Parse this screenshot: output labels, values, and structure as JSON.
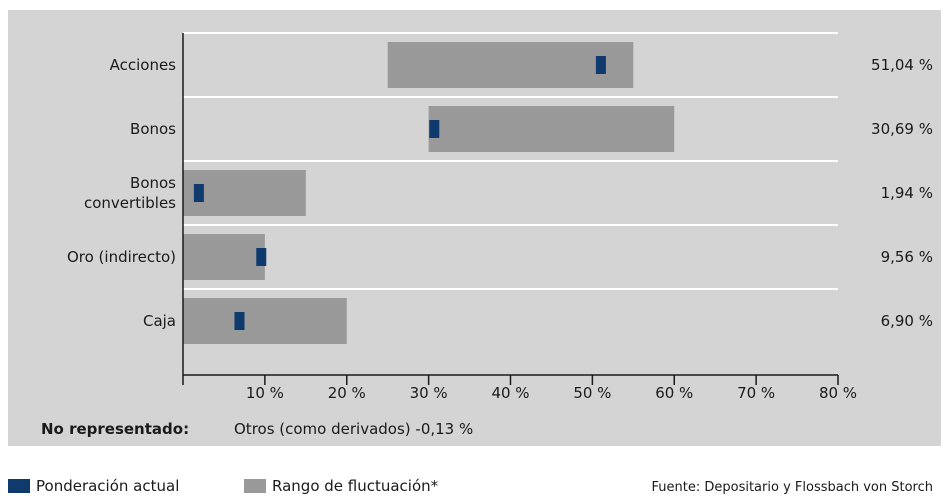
{
  "chart_data": {
    "type": "bar",
    "orientation": "horizontal",
    "categories": [
      "Acciones",
      "Bonos",
      "Bonos\nconvertibles",
      "Oro (indirecto)",
      "Caja"
    ],
    "ranges": [
      [
        25,
        55
      ],
      [
        30,
        60
      ],
      [
        0,
        15
      ],
      [
        0,
        10
      ],
      [
        0,
        20
      ]
    ],
    "values": [
      51.04,
      30.69,
      1.94,
      9.56,
      6.9
    ],
    "value_labels": [
      "51,04 %",
      "30,69 %",
      "1,94 %",
      "9,56 %",
      "6,90 %"
    ],
    "xlim": [
      0,
      80
    ],
    "x_ticks": [
      0,
      10,
      20,
      30,
      40,
      50,
      60,
      70,
      80
    ],
    "x_tick_labels": [
      "",
      "10 %",
      "20 %",
      "30 %",
      "40 %",
      "50 %",
      "60 %",
      "70 %",
      "80 %"
    ],
    "grid": "horizontal separators",
    "colors": {
      "range": "#999999",
      "current": "#0e3a6e",
      "background": "#d4d4d4",
      "grid": "#ffffff"
    }
  },
  "note": {
    "label": "No representado:",
    "text": "Otros (como derivados) -0,13 %"
  },
  "legend": {
    "current": "Ponderación actual",
    "range": "Rango de fluctuación*"
  },
  "source": "Fuente: Depositario y Flossbach von Storch"
}
